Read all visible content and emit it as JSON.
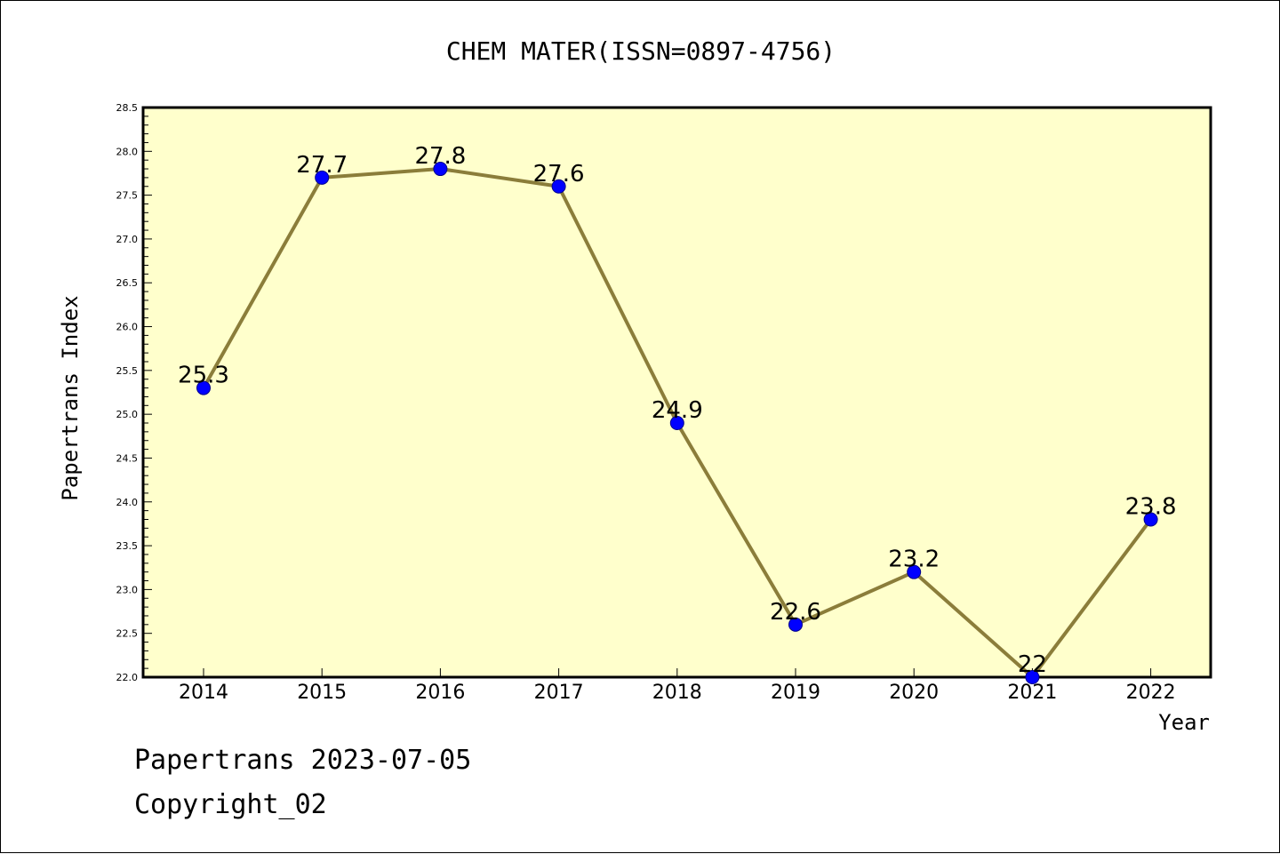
{
  "footer": {
    "line1": "Papertrans 2023-07-05",
    "line2": "Copyright_02"
  },
  "colors": {
    "plot_background": "#ffffcc",
    "line": "#8b7d3a",
    "marker": "#0000ff",
    "axes": "#000000"
  },
  "chart_data": {
    "type": "line",
    "title": "CHEM MATER(ISSN=0897-4756)",
    "xlabel": "Year",
    "ylabel": "Papertrans Index",
    "ylim": [
      22.0,
      28.5
    ],
    "yticks": [
      "22.0",
      "22.5",
      "23.0",
      "23.5",
      "24.0",
      "24.5",
      "25.0",
      "25.5",
      "26.0",
      "26.5",
      "27.0",
      "27.5",
      "28.0",
      "28.5"
    ],
    "grid": false,
    "categories": [
      "2014",
      "2015",
      "2016",
      "2017",
      "2018",
      "2019",
      "2020",
      "2021",
      "2022"
    ],
    "values": [
      25.3,
      27.7,
      27.8,
      27.6,
      24.9,
      22.6,
      23.2,
      22.0,
      23.8
    ],
    "data_labels": [
      "25.3",
      "27.7",
      "27.8",
      "27.6",
      "24.9",
      "22.6",
      "23.2",
      "22",
      "23.8"
    ]
  }
}
